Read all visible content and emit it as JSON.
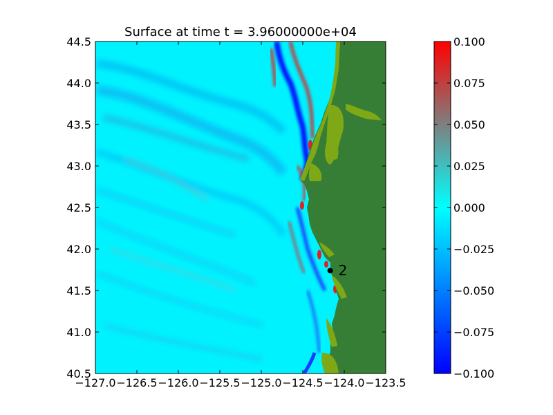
{
  "chart_data": [
    {
      "type": "heatmap",
      "title": "Surface at time t = 3.96000000e+04",
      "xlim": [
        -127.0,
        -123.5
      ],
      "ylim": [
        40.5,
        44.5
      ],
      "x_ticks": [
        "−127.0",
        "−126.5",
        "−126.0",
        "−125.5",
        "−125.0",
        "−124.5",
        "−124.0",
        "−123.5"
      ],
      "y_ticks": [
        "40.5",
        "41.0",
        "41.5",
        "42.0",
        "42.5",
        "43.0",
        "43.5",
        "44.0",
        "44.5"
      ],
      "grid": false,
      "land_color": "#367e35",
      "water_base_color": "#00f2ff",
      "gauge": {
        "label": "2",
        "x": -124.17,
        "y": 41.74
      }
    },
    {
      "type": "colorbar",
      "range": [
        -0.1,
        0.1
      ],
      "ticks": [
        "0.100",
        "0.075",
        "0.050",
        "0.025",
        "0.000",
        "−0.025",
        "−0.050",
        "−0.075",
        "−0.100"
      ],
      "colormap": [
        "#0000ff",
        "#00ffff",
        "#ff0000"
      ]
    }
  ]
}
